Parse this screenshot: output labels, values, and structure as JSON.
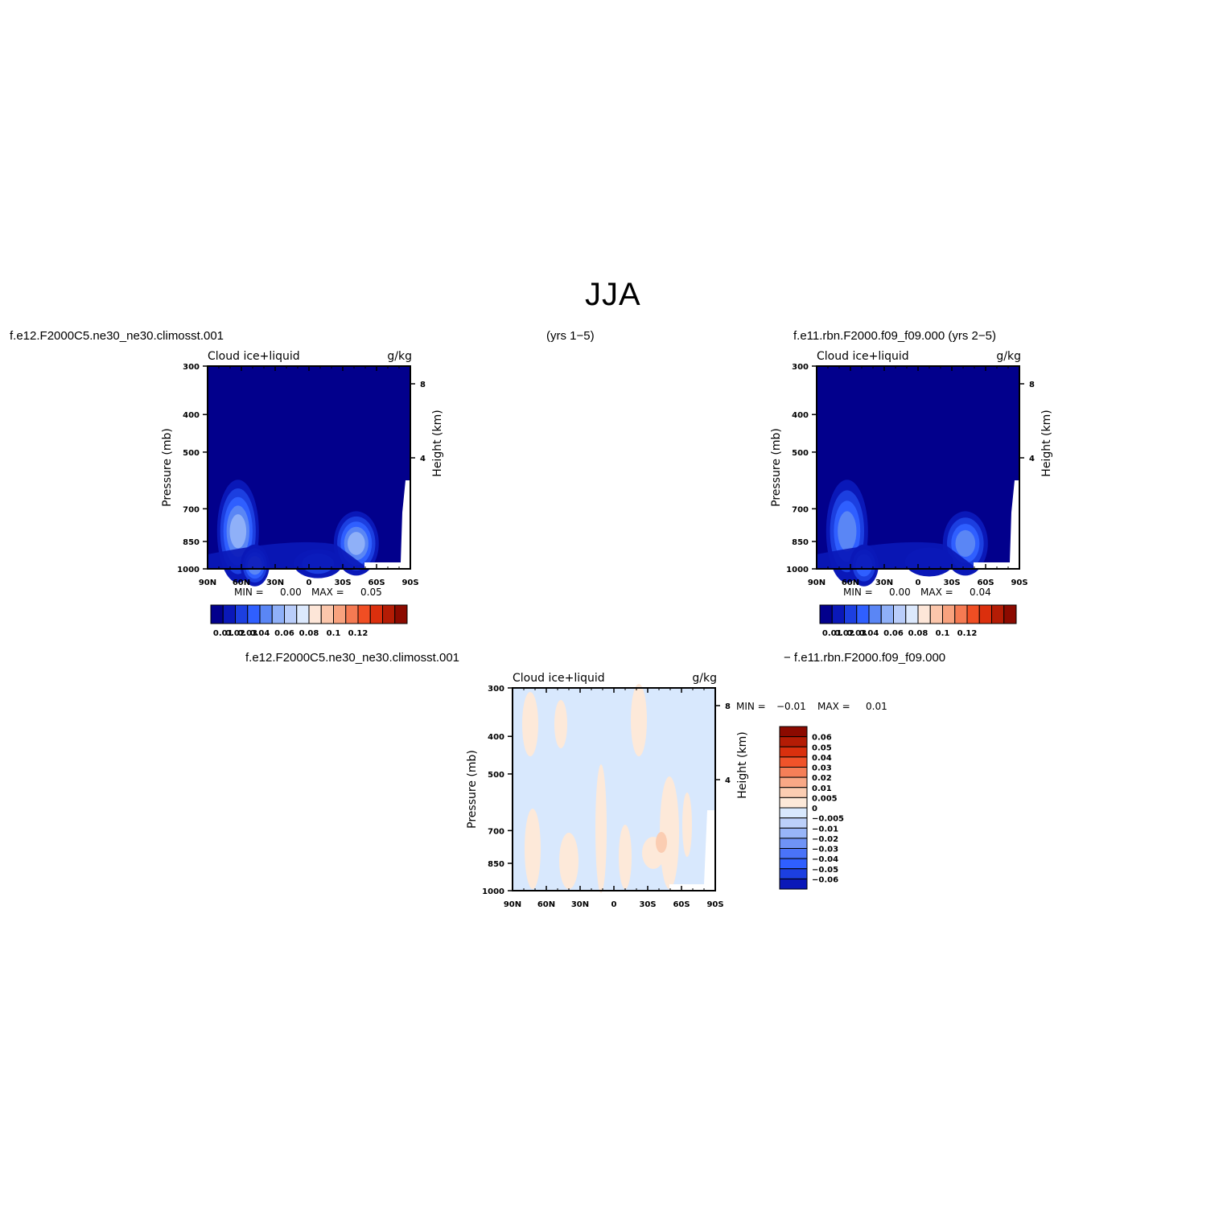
{
  "figure": {
    "title": "JJA",
    "header_left": "f.e12.F2000C5.ne30_ne30.climosst.001",
    "header_center": "(yrs 1−5)",
    "header_right": "f.e11.rbn.F2000.f09_f09.000 (yrs 2−5)",
    "diff_left": "f.e12.F2000C5.ne30_ne30.climosst.001",
    "diff_right": "− f.e11.rbn.F2000.f09_f09.000"
  },
  "colors": {
    "abs_scale": [
      "#02008c",
      "#0a18b8",
      "#1c3fe0",
      "#2f5fff",
      "#5a86f5",
      "#8fb0f8",
      "#b9cdfa",
      "#dce9fd",
      "#fde6d8",
      "#fbc6ab",
      "#f8a27e",
      "#f57a52",
      "#f04e23",
      "#db2f0d",
      "#b41c05",
      "#8c0a00"
    ],
    "diff_scale": [
      "#02008c",
      "#0a18b8",
      "#1c3fe0",
      "#2f5fff",
      "#4a73f8",
      "#6f93f6",
      "#98b5f8",
      "#bcd0fa",
      "#d8e8fd",
      "#fde9d9",
      "#fbcdb2",
      "#f8a886",
      "#f57f58",
      "#f0532a",
      "#d9300e",
      "#b41c05",
      "#8c0a00"
    ]
  },
  "chart_data": [
    {
      "type": "heatmap",
      "panel": "top-left",
      "field_label": "Cloud ice+liquid",
      "units": "g/kg",
      "ylabel": "Pressure (mb)",
      "ylabel_right": "Height (km)",
      "x_ticks": [
        "90N",
        "60N",
        "30N",
        "0",
        "30S",
        "60S",
        "90S"
      ],
      "y_ticks": [
        "300",
        "400",
        "500",
        "700",
        "850",
        "1000"
      ],
      "y_right_ticks": [
        "8",
        "4"
      ],
      "min_label": "MIN =",
      "min_value": "0.00",
      "max_label": "MAX =",
      "max_value": "0.05",
      "colorbar_labels": [
        "0.01",
        "0.02",
        "0.03",
        "0.04",
        "0.06",
        "0.08",
        "0.1",
        "0.12"
      ],
      "maxima": [
        {
          "lat": 63,
          "p": 800,
          "value": 0.045
        },
        {
          "lat": 48,
          "p": 980,
          "value": 0.04
        },
        {
          "lat": -42,
          "p": 860,
          "value": 0.05
        },
        {
          "lat": -8,
          "p": 970,
          "value": 0.015
        }
      ]
    },
    {
      "type": "heatmap",
      "panel": "top-right",
      "field_label": "Cloud ice+liquid",
      "units": "g/kg",
      "ylabel": "Pressure (mb)",
      "ylabel_right": "Height (km)",
      "x_ticks": [
        "90N",
        "60N",
        "30N",
        "0",
        "30S",
        "60S",
        "90S"
      ],
      "y_ticks": [
        "300",
        "400",
        "500",
        "700",
        "850",
        "1000"
      ],
      "y_right_ticks": [
        "8",
        "4"
      ],
      "min_label": "MIN =",
      "min_value": "0.00",
      "max_label": "MAX =",
      "max_value": "0.04",
      "colorbar_labels": [
        "0.01",
        "0.02",
        "0.03",
        "0.04",
        "0.06",
        "0.08",
        "0.1",
        "0.12"
      ],
      "maxima": [
        {
          "lat": 63,
          "p": 800,
          "value": 0.04
        },
        {
          "lat": 48,
          "p": 980,
          "value": 0.035
        },
        {
          "lat": -42,
          "p": 860,
          "value": 0.04
        },
        {
          "lat": -10,
          "p": 960,
          "value": 0.015
        }
      ]
    },
    {
      "type": "heatmap",
      "panel": "bottom-difference",
      "field_label": "Cloud ice+liquid",
      "units": "g/kg",
      "ylabel": "Pressure (mb)",
      "ylabel_right": "Height (km)",
      "x_ticks": [
        "90N",
        "60N",
        "30N",
        "0",
        "30S",
        "60S",
        "90S"
      ],
      "y_ticks": [
        "300",
        "400",
        "500",
        "700",
        "850",
        "1000"
      ],
      "y_right_ticks": [
        "8",
        "4"
      ],
      "min_label": "MIN =",
      "min_value": "−0.01",
      "max_label": "MAX =",
      "max_value": "0.01",
      "colorbar_labels": [
        "0.06",
        "0.05",
        "0.04",
        "0.03",
        "0.02",
        "0.01",
        "0.005",
        "0",
        "−0.005",
        "−0.01",
        "−0.02",
        "−0.03",
        "−0.04",
        "−0.05",
        "−0.06"
      ]
    }
  ]
}
